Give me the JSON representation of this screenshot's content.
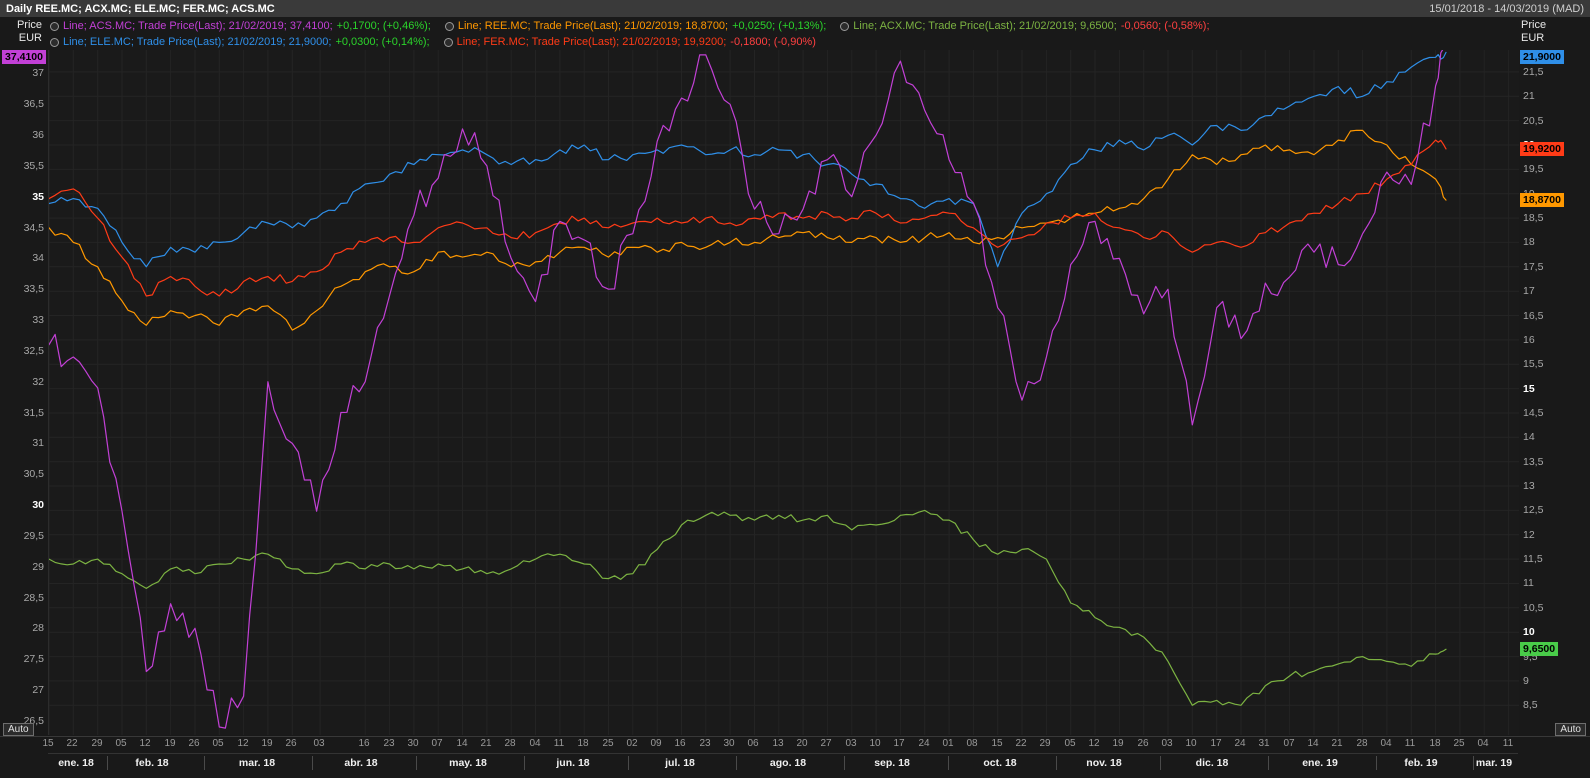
{
  "header": {
    "title": "Daily REE.MC; ACX.MC; ELE.MC; FER.MC; ACS.MC",
    "date_range": "15/01/2018 - 14/03/2019 (MAD)"
  },
  "axis_headers": {
    "line1": "Price",
    "line2": "EUR"
  },
  "controls": {
    "auto_label": "Auto"
  },
  "colors": {
    "positive_change": "#2bd42b",
    "negative_change": "#ff4040",
    "grid": "#242424",
    "plot_background": "#1a1a1a"
  },
  "legend": {
    "entries": [
      {
        "ric": "ACS.MC",
        "text": "Line; ACS.MC; Trade Price(Last); 21/02/2019; 37,4100;",
        "change": "+0,1700; (+0,46%);",
        "dir": "up"
      },
      {
        "ric": "REE.MC",
        "text": "Line; REE.MC; Trade Price(Last); 21/02/2019; 18,8700;",
        "change": "+0,0250; (+0,13%);",
        "dir": "up"
      },
      {
        "ric": "ACX.MC",
        "text": "Line; ACX.MC; Trade Price(Last); 21/02/2019; 9,6500;",
        "change": "-0,0560; (-0,58%);",
        "dir": "down"
      },
      {
        "ric": "ELE.MC",
        "text": "Line; ELE.MC; Trade Price(Last); 21/02/2019; 21,9000;",
        "change": "+0,0300; (+0,14%);",
        "dir": "up"
      },
      {
        "ric": "FER.MC",
        "text": "Line; FER.MC; Trade Price(Last); 21/02/2019; 19,9200;",
        "change": "-0,1800; (-0,90%)",
        "dir": "down"
      }
    ]
  },
  "chart_data": {
    "type": "line",
    "title": "Daily REE.MC; ACX.MC; ELE.MC; FER.MC; ACS.MC",
    "date_range": [
      "15/01/2018",
      "14/03/2019"
    ],
    "timezone": "(MAD)",
    "last_trade_date": "21/02/2019",
    "total_days": 423,
    "data_end_day": 402,
    "sample_interval_days": 7,
    "left_axis": {
      "title": "Price EUR",
      "min": 26.27,
      "max": 37.38,
      "bold_ticks": [
        35,
        30
      ],
      "ticks": [
        [
          37,
          "37"
        ],
        [
          36.5,
          "36,5"
        ],
        [
          36,
          "36"
        ],
        [
          35.5,
          "35,5"
        ],
        [
          35,
          "35"
        ],
        [
          34.5,
          "34,5"
        ],
        [
          34,
          "34"
        ],
        [
          33.5,
          "33,5"
        ],
        [
          33,
          "33"
        ],
        [
          32.5,
          "32,5"
        ],
        [
          32,
          "32"
        ],
        [
          31.5,
          "31,5"
        ],
        [
          31,
          "31"
        ],
        [
          30.5,
          "30,5"
        ],
        [
          30,
          "30"
        ],
        [
          29.5,
          "29,5"
        ],
        [
          29,
          "29"
        ],
        [
          28.5,
          "28,5"
        ],
        [
          28,
          "28"
        ],
        [
          27.5,
          "27,5"
        ],
        [
          27,
          "27"
        ],
        [
          26.5,
          "26,5"
        ]
      ]
    },
    "right_axis": {
      "title": "Price EUR",
      "min": 7.89,
      "max": 21.95,
      "bold_ticks": [
        20,
        15,
        10
      ],
      "ticks": [
        [
          21.5,
          "21,5"
        ],
        [
          21,
          "21"
        ],
        [
          20.5,
          "20,5"
        ],
        [
          20,
          "20"
        ],
        [
          19.5,
          "19,5"
        ],
        [
          19,
          "19"
        ],
        [
          18.5,
          "18,5"
        ],
        [
          18,
          "18"
        ],
        [
          17.5,
          "17,5"
        ],
        [
          17,
          "17"
        ],
        [
          16.5,
          "16,5"
        ],
        [
          16,
          "16"
        ],
        [
          15.5,
          "15,5"
        ],
        [
          15,
          "15"
        ],
        [
          14.5,
          "14,5"
        ],
        [
          14,
          "14"
        ],
        [
          13.5,
          "13,5"
        ],
        [
          13,
          "13"
        ],
        [
          12.5,
          "12,5"
        ],
        [
          12,
          "12"
        ],
        [
          11.5,
          "11,5"
        ],
        [
          11,
          "11"
        ],
        [
          10.5,
          "10,5"
        ],
        [
          10,
          "10"
        ],
        [
          9.5,
          "9,5"
        ],
        [
          9,
          "9"
        ],
        [
          8.5,
          "8,5"
        ]
      ]
    },
    "x_ticks": [
      [
        0,
        "15"
      ],
      [
        7,
        "22"
      ],
      [
        14,
        "29"
      ],
      [
        21,
        "05"
      ],
      [
        28,
        "12"
      ],
      [
        35,
        "19"
      ],
      [
        42,
        "26"
      ],
      [
        49,
        "05"
      ],
      [
        56,
        "12"
      ],
      [
        63,
        "19"
      ],
      [
        70,
        "26"
      ],
      [
        78,
        "03"
      ],
      [
        91,
        "16"
      ],
      [
        98,
        "23"
      ],
      [
        105,
        "30"
      ],
      [
        112,
        "07"
      ],
      [
        119,
        "14"
      ],
      [
        126,
        "21"
      ],
      [
        133,
        "28"
      ],
      [
        140,
        "04"
      ],
      [
        147,
        "11"
      ],
      [
        154,
        "18"
      ],
      [
        161,
        "25"
      ],
      [
        168,
        "02"
      ],
      [
        175,
        "09"
      ],
      [
        182,
        "16"
      ],
      [
        189,
        "23"
      ],
      [
        196,
        "30"
      ],
      [
        203,
        "06"
      ],
      [
        210,
        "13"
      ],
      [
        217,
        "20"
      ],
      [
        224,
        "27"
      ],
      [
        231,
        "03"
      ],
      [
        238,
        "10"
      ],
      [
        245,
        "17"
      ],
      [
        252,
        "24"
      ],
      [
        259,
        "01"
      ],
      [
        266,
        "08"
      ],
      [
        273,
        "15"
      ],
      [
        280,
        "22"
      ],
      [
        287,
        "29"
      ],
      [
        294,
        "05"
      ],
      [
        301,
        "12"
      ],
      [
        308,
        "19"
      ],
      [
        315,
        "26"
      ],
      [
        322,
        "03"
      ],
      [
        329,
        "10"
      ],
      [
        336,
        "17"
      ],
      [
        343,
        "24"
      ],
      [
        350,
        "31"
      ],
      [
        357,
        "07"
      ],
      [
        364,
        "14"
      ],
      [
        371,
        "21"
      ],
      [
        378,
        "28"
      ],
      [
        385,
        "04"
      ],
      [
        392,
        "11"
      ],
      [
        399,
        "18"
      ],
      [
        406,
        "25"
      ],
      [
        413,
        "04"
      ],
      [
        420,
        "11"
      ]
    ],
    "x_months": [
      [
        8,
        "ene. 18"
      ],
      [
        30,
        "feb. 18"
      ],
      [
        60,
        "mar. 18"
      ],
      [
        90,
        "abr. 18"
      ],
      [
        121,
        "may. 18"
      ],
      [
        151,
        "jun. 18"
      ],
      [
        182,
        "jul. 18"
      ],
      [
        213,
        "ago. 18"
      ],
      [
        243,
        "sep. 18"
      ],
      [
        274,
        "oct. 18"
      ],
      [
        304,
        "nov. 18"
      ],
      [
        335,
        "dic. 18"
      ],
      [
        366,
        "ene. 19"
      ],
      [
        395,
        "feb. 19"
      ],
      [
        416,
        "mar. 19"
      ]
    ],
    "month_boundaries": [
      17,
      45,
      76,
      106,
      137,
      167,
      198,
      229,
      259,
      290,
      320,
      351,
      382,
      410
    ],
    "series": [
      {
        "name": "REE.MC",
        "axis": "right",
        "color": "#ff9800",
        "badge_color": "#ff9800",
        "last": 18.87,
        "last_label": "18,8700",
        "change": "+0,0250",
        "change_pct": "+0,13%",
        "jitter": 0.09,
        "values": [
          18.3,
          18.0,
          17.5,
          16.8,
          16.3,
          16.6,
          16.5,
          16.3,
          16.6,
          16.7,
          16.2,
          16.6,
          17.1,
          17.4,
          17.5,
          17.4,
          17.8,
          17.7,
          17.8,
          17.5,
          17.6,
          17.8,
          17.9,
          17.7,
          17.9,
          17.8,
          18.0,
          17.9,
          18.0,
          18.0,
          18.1,
          18.2,
          18.1,
          18.0,
          18.1,
          18.0,
          18.1,
          18.2,
          18.0,
          18.1,
          18.3,
          18.4,
          18.5,
          18.6,
          18.7,
          18.9,
          19.3,
          19.8,
          19.6,
          19.8,
          20.0,
          19.9,
          19.8,
          20.1,
          20.3,
          20.0,
          19.6,
          19.3,
          18.87
        ]
      },
      {
        "name": "ACX.MC",
        "axis": "right",
        "color": "#7cb342",
        "badge_color": "#49cc49",
        "last": 9.65,
        "last_label": "9,6500",
        "change": "-0,0560",
        "change_pct": "-0,58%",
        "jitter": 0.07,
        "values": [
          11.5,
          11.4,
          11.5,
          11.2,
          10.9,
          11.3,
          11.2,
          11.4,
          11.5,
          11.6,
          11.3,
          11.2,
          11.4,
          11.3,
          11.4,
          11.3,
          11.4,
          11.3,
          11.2,
          11.3,
          11.5,
          11.6,
          11.4,
          11.1,
          11.2,
          11.7,
          12.2,
          12.4,
          12.4,
          12.3,
          12.4,
          12.3,
          12.4,
          12.1,
          12.2,
          12.4,
          12.5,
          12.3,
          11.9,
          11.6,
          11.7,
          11.5,
          10.6,
          10.3,
          10.1,
          9.9,
          9.4,
          8.5,
          8.6,
          8.5,
          8.9,
          9.1,
          9.2,
          9.35,
          9.5,
          9.4,
          9.3,
          9.55,
          9.65
        ]
      },
      {
        "name": "ELE.MC",
        "axis": "right",
        "color": "#2f8fe8",
        "badge_color": "#2f8fe8",
        "last": 21.9,
        "last_label": "21,9000",
        "change": "+0,0300",
        "change_pct": "+0,14%",
        "jitter": 0.1,
        "values": [
          18.8,
          18.9,
          18.7,
          18.0,
          17.5,
          17.9,
          17.8,
          18.0,
          18.2,
          18.4,
          18.3,
          18.5,
          18.8,
          19.2,
          19.4,
          19.6,
          19.8,
          19.9,
          19.8,
          19.6,
          19.7,
          19.9,
          20.0,
          19.7,
          19.8,
          19.9,
          20.0,
          19.8,
          19.9,
          19.8,
          19.9,
          19.8,
          19.6,
          19.4,
          19.2,
          18.9,
          18.7,
          18.9,
          18.8,
          17.5,
          18.6,
          19.0,
          19.6,
          19.9,
          20.1,
          19.9,
          20.2,
          20.0,
          20.4,
          20.3,
          20.6,
          20.8,
          21.0,
          21.2,
          21.0,
          21.3,
          21.6,
          21.8,
          21.9
        ]
      },
      {
        "name": "FER.MC",
        "axis": "right",
        "color": "#ff3b17",
        "badge_color": "#ff3b17",
        "last": 19.92,
        "last_label": "19,9200",
        "change": "-0,1800",
        "change_pct": "-0,90%",
        "jitter": 0.09,
        "values": [
          18.9,
          19.1,
          18.5,
          17.7,
          16.9,
          17.3,
          17.1,
          16.9,
          17.2,
          17.3,
          17.2,
          17.4,
          17.8,
          18.0,
          18.1,
          18.0,
          18.3,
          18.4,
          18.3,
          18.1,
          18.2,
          18.4,
          18.5,
          18.3,
          18.4,
          18.5,
          18.4,
          18.5,
          18.4,
          18.5,
          18.6,
          18.5,
          18.6,
          18.5,
          18.6,
          18.4,
          18.5,
          18.6,
          18.3,
          17.9,
          18.1,
          18.4,
          18.5,
          18.6,
          18.3,
          18.1,
          18.2,
          17.8,
          18.0,
          17.9,
          18.2,
          18.4,
          18.6,
          18.8,
          19.0,
          19.3,
          19.6,
          20.1,
          19.92
        ]
      },
      {
        "name": "ACS.MC",
        "axis": "left",
        "color": "#c240d6",
        "badge_color": "#c240d6",
        "last": 37.41,
        "last_label": "37,4100",
        "change": "+0,1700",
        "change_pct": "+0,46%",
        "jitter": 0.26,
        "values": [
          32.6,
          32.4,
          31.9,
          29.9,
          27.3,
          28.4,
          28.0,
          26.4,
          26.9,
          32.0,
          31.0,
          29.9,
          31.5,
          32.0,
          33.4,
          34.7,
          35.3,
          36.1,
          35.5,
          34.0,
          33.3,
          34.6,
          34.3,
          33.5,
          34.4,
          35.9,
          36.6,
          37.3,
          36.5,
          34.8,
          34.4,
          34.8,
          35.6,
          35.0,
          36.0,
          37.2,
          36.4,
          35.6,
          34.9,
          33.2,
          31.7,
          32.4,
          33.9,
          34.6,
          34.0,
          33.1,
          33.5,
          31.3,
          33.2,
          32.7,
          33.6,
          33.7,
          34.1,
          33.9,
          34.4,
          35.4,
          35.2,
          36.8,
          37.41
        ]
      }
    ]
  }
}
